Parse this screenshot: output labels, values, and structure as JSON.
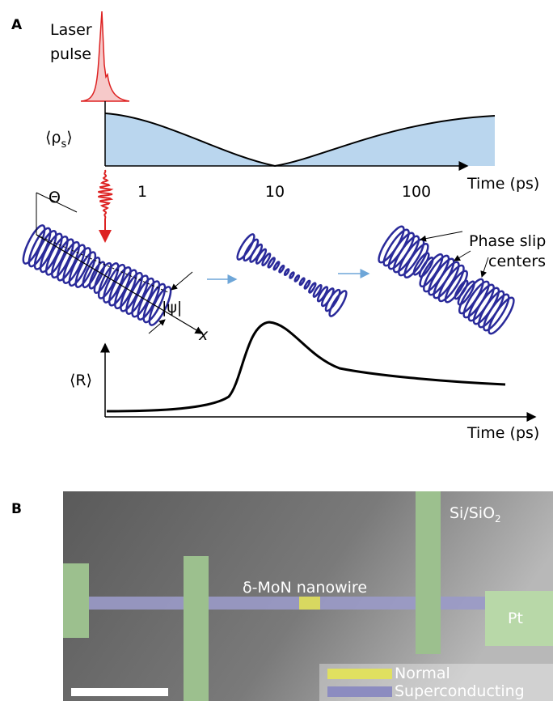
{
  "panel_a": {
    "label": "A",
    "laser_pulse": [
      "Laser",
      "pulse"
    ],
    "rho_label": {
      "open": "⟨ρ",
      "sub": "s",
      "close": "⟩"
    },
    "time_axis_label": "Time (ps)",
    "ticks": [
      "1",
      "10",
      "100"
    ],
    "theta": "Θ",
    "psi": "|ψ|",
    "x_axis": "x",
    "phase_slip": [
      "Phase slip",
      "centers"
    ],
    "r_label": "⟨R⟩",
    "time_axis_label_2": "Time (ps)"
  },
  "panel_b": {
    "label": "B",
    "substrate": {
      "main": "Si/SiO",
      "sub": "2"
    },
    "nanowire": "δ-MoN nanowire",
    "pt": "Pt",
    "legend": [
      "Normal",
      "Superconducting"
    ]
  }
}
